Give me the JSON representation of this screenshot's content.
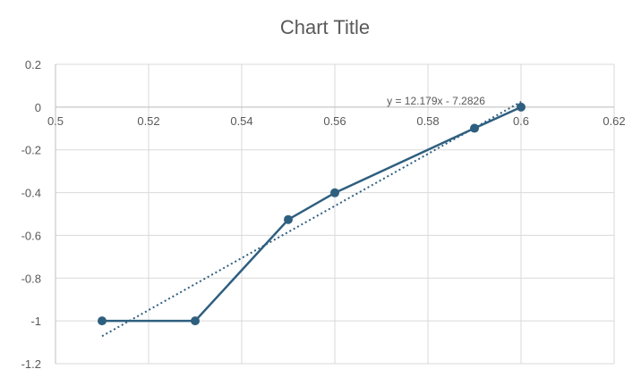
{
  "chart_data": {
    "type": "scatter",
    "title": "Chart Title",
    "xlim": [
      0.5,
      0.62
    ],
    "ylim": [
      -1.2,
      0.2
    ],
    "x_ticks": [
      "0.5",
      "0.52",
      "0.54",
      "0.56",
      "0.58",
      "0.6",
      "0.62"
    ],
    "y_ticks": [
      "0.2",
      "0",
      "-0.2",
      "-0.4",
      "-0.6",
      "-0.8",
      "-1",
      "-1.2"
    ],
    "grid": true,
    "series": [
      {
        "x": [
          0.51,
          0.53,
          0.55,
          0.56,
          0.59,
          0.6
        ],
        "y": [
          -1.0,
          -1.0,
          -0.526,
          -0.401,
          -0.099,
          0.0
        ],
        "color": "#2f5f7f",
        "markers": true,
        "lines": true
      }
    ],
    "trendline": {
      "type": "linear",
      "slope": 12.179,
      "intercept": -7.2826,
      "x_range": [
        0.51,
        0.6
      ],
      "label": "y = 12.179x - 7.2826",
      "style": "dotted",
      "color": "#2f5f7f"
    }
  },
  "colors": {
    "grid": "#d9d9d9",
    "text": "#595959",
    "series": "#2f5f7f"
  }
}
